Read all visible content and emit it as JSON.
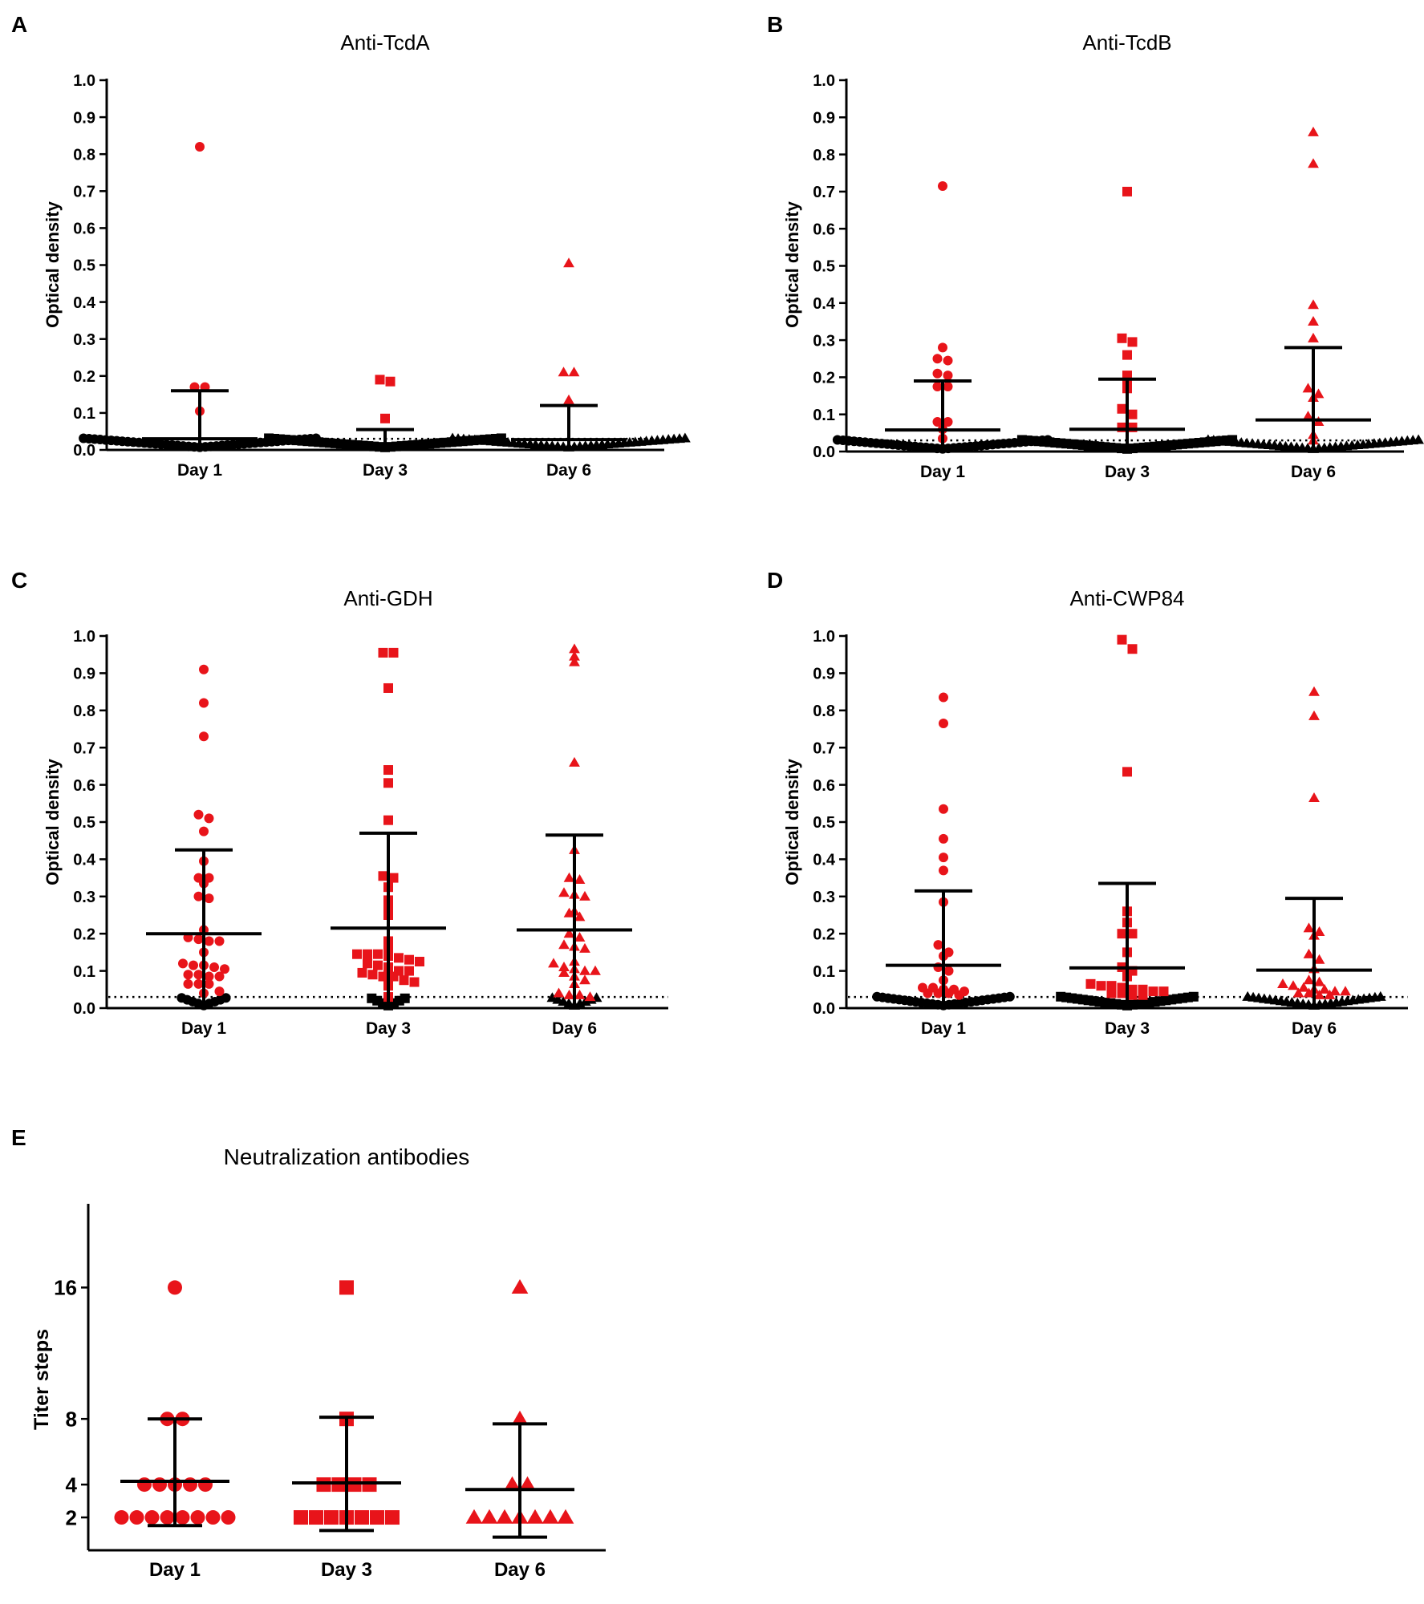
{
  "colors": {
    "positive": "#e8141a",
    "negative": "#000000",
    "axis": "#000000"
  },
  "chart_data": [
    {
      "panel": "A",
      "type": "scatter",
      "title": "Anti-TcdA",
      "ylabel": "Optical density",
      "xlabel": "",
      "ylim": [
        0,
        1.0
      ],
      "yticks": [
        "0.0",
        "0.1",
        "0.2",
        "0.3",
        "0.4",
        "0.5",
        "0.6",
        "0.7",
        "0.8",
        "0.9",
        "1.0"
      ],
      "ytick_values": [
        0,
        0.1,
        0.2,
        0.3,
        0.4,
        0.5,
        0.6,
        0.7,
        0.8,
        0.9,
        1.0
      ],
      "categories": [
        "Day 1",
        "Day 3",
        "Day 6"
      ],
      "cutoff": 0.03,
      "series": [
        {
          "name": "Day 1",
          "marker": "circle",
          "mean": 0.03,
          "sd_upper": 0.16,
          "positive": [
            0.82,
            0.17,
            0.17,
            0.105
          ],
          "negative_count": 44
        },
        {
          "name": "Day 3",
          "marker": "square",
          "mean": 0.015,
          "sd_upper": 0.055,
          "positive": [
            0.19,
            0.185,
            0.085
          ],
          "negative_count": 44
        },
        {
          "name": "Day 6",
          "marker": "triangle",
          "mean": 0.028,
          "sd_upper": 0.12,
          "positive": [
            0.505,
            0.21,
            0.21,
            0.135
          ],
          "negative_count": 44
        }
      ]
    },
    {
      "panel": "B",
      "type": "scatter",
      "title": "Anti-TcdB",
      "ylabel": "Optical density",
      "xlabel": "",
      "ylim": [
        0,
        1.0
      ],
      "yticks": [
        "0.0",
        "0.1",
        "0.2",
        "0.3",
        "0.4",
        "0.5",
        "0.6",
        "0.7",
        "0.8",
        "0.9",
        "1.0"
      ],
      "ytick_values": [
        0,
        0.1,
        0.2,
        0.3,
        0.4,
        0.5,
        0.6,
        0.7,
        0.8,
        0.9,
        1.0
      ],
      "categories": [
        "Day 1",
        "Day 3",
        "Day 6"
      ],
      "cutoff": 0.03,
      "series": [
        {
          "name": "Day 1",
          "marker": "circle",
          "mean": 0.058,
          "sd_upper": 0.19,
          "positive": [
            0.715,
            0.28,
            0.25,
            0.245,
            0.21,
            0.205,
            0.175,
            0.175,
            0.08,
            0.08,
            0.06,
            0.035
          ],
          "negative_count": 40
        },
        {
          "name": "Day 3",
          "marker": "square",
          "mean": 0.06,
          "sd_upper": 0.195,
          "positive": [
            0.7,
            0.305,
            0.295,
            0.26,
            0.205,
            0.195,
            0.17,
            0.115,
            0.1,
            0.065,
            0.065
          ],
          "negative_count": 40
        },
        {
          "name": "Day 6",
          "marker": "triangle",
          "mean": 0.085,
          "sd_upper": 0.28,
          "positive": [
            0.86,
            0.775,
            0.395,
            0.35,
            0.305,
            0.17,
            0.155,
            0.145,
            0.095,
            0.08,
            0.045,
            0.03
          ],
          "negative_count": 40
        }
      ]
    },
    {
      "panel": "C",
      "type": "scatter",
      "title": "Anti-GDH",
      "ylabel": "Optical density",
      "xlabel": "",
      "ylim": [
        0,
        1.0
      ],
      "yticks": [
        "0.0",
        "0.1",
        "0.2",
        "0.3",
        "0.4",
        "0.5",
        "0.6",
        "0.7",
        "0.8",
        "0.9",
        "1.0"
      ],
      "ytick_values": [
        0,
        0.1,
        0.2,
        0.3,
        0.4,
        0.5,
        0.6,
        0.7,
        0.8,
        0.9,
        1.0
      ],
      "categories": [
        "Day 1",
        "Day 3",
        "Day 6"
      ],
      "cutoff": 0.03,
      "series": [
        {
          "name": "Day 1",
          "marker": "circle",
          "mean": 0.2,
          "sd_upper": 0.425,
          "positive": [
            0.91,
            0.82,
            0.73,
            0.52,
            0.51,
            0.475,
            0.395,
            0.35,
            0.35,
            0.335,
            0.3,
            0.295,
            0.21,
            0.19,
            0.185,
            0.18,
            0.18,
            0.15,
            0.12,
            0.115,
            0.115,
            0.11,
            0.105,
            0.09,
            0.09,
            0.085,
            0.085,
            0.065,
            0.065,
            0.065,
            0.045,
            0.04
          ],
          "negative_count": 10
        },
        {
          "name": "Day 3",
          "marker": "square",
          "mean": 0.215,
          "sd_upper": 0.47,
          "positive": [
            0.955,
            0.955,
            0.86,
            0.64,
            0.605,
            0.505,
            0.355,
            0.35,
            0.325,
            0.29,
            0.275,
            0.25,
            0.18,
            0.165,
            0.145,
            0.145,
            0.145,
            0.14,
            0.135,
            0.13,
            0.125,
            0.12,
            0.115,
            0.11,
            0.1,
            0.1,
            0.095,
            0.09,
            0.085,
            0.085,
            0.075,
            0.07,
            0.06,
            0.03
          ],
          "negative_count": 8
        },
        {
          "name": "Day 6",
          "marker": "triangle",
          "mean": 0.21,
          "sd_upper": 0.465,
          "positive": [
            0.965,
            0.945,
            0.93,
            0.66,
            0.425,
            0.35,
            0.345,
            0.31,
            0.305,
            0.3,
            0.26,
            0.255,
            0.245,
            0.2,
            0.19,
            0.17,
            0.165,
            0.16,
            0.125,
            0.12,
            0.11,
            0.105,
            0.1,
            0.1,
            0.095,
            0.085,
            0.075,
            0.065,
            0.04,
            0.035,
            0.035,
            0.03
          ],
          "negative_count": 10
        }
      ]
    },
    {
      "panel": "D",
      "type": "scatter",
      "title": "Anti-CWP84",
      "ylabel": "Optical density",
      "xlabel": "",
      "ylim": [
        0,
        1.0
      ],
      "yticks": [
        "0.0",
        "0.1",
        "0.2",
        "0.3",
        "0.4",
        "0.5",
        "0.6",
        "0.7",
        "0.8",
        "0.9",
        "1.0"
      ],
      "ytick_values": [
        0,
        0.1,
        0.2,
        0.3,
        0.4,
        0.5,
        0.6,
        0.7,
        0.8,
        0.9,
        1.0
      ],
      "categories": [
        "Day 1",
        "Day 3",
        "Day 6"
      ],
      "cutoff": 0.03,
      "series": [
        {
          "name": "Day 1",
          "marker": "circle",
          "mean": 0.115,
          "sd_upper": 0.315,
          "positive": [
            0.835,
            0.765,
            0.535,
            0.455,
            0.405,
            0.37,
            0.285,
            0.17,
            0.15,
            0.14,
            0.11,
            0.1,
            0.075,
            0.055,
            0.055,
            0.05,
            0.05,
            0.045,
            0.04,
            0.04,
            0.04,
            0.035
          ],
          "negative_count": 26
        },
        {
          "name": "Day 3",
          "marker": "square",
          "mean": 0.108,
          "sd_upper": 0.335,
          "positive": [
            0.99,
            0.965,
            0.635,
            0.26,
            0.23,
            0.2,
            0.2,
            0.15,
            0.11,
            0.1,
            0.085,
            0.065,
            0.06,
            0.06,
            0.055,
            0.05,
            0.05,
            0.045,
            0.045,
            0.04,
            0.04,
            0.035,
            0.035
          ],
          "negative_count": 26
        },
        {
          "name": "Day 6",
          "marker": "triangle",
          "mean": 0.102,
          "sd_upper": 0.295,
          "positive": [
            0.85,
            0.785,
            0.565,
            0.215,
            0.205,
            0.195,
            0.145,
            0.13,
            0.105,
            0.075,
            0.07,
            0.065,
            0.06,
            0.055,
            0.05,
            0.05,
            0.045,
            0.045,
            0.04,
            0.04,
            0.035,
            0.035
          ],
          "negative_count": 26
        }
      ]
    },
    {
      "panel": "E",
      "type": "scatter",
      "title": "Neutralization antibodies",
      "ylabel": "Titer steps",
      "xlabel": "",
      "ylim": [
        0,
        21
      ],
      "yticks": [
        "2",
        "4",
        "8",
        "16"
      ],
      "ytick_values": [
        2,
        4,
        8,
        16
      ],
      "categories": [
        "Day 1",
        "Day 3",
        "Day 6"
      ],
      "cutoff": null,
      "series": [
        {
          "name": "Day 1",
          "marker": "circle",
          "mean": 4.2,
          "sd_upper": 8.0,
          "sd_lower": 1.5,
          "positive": [
            16,
            8,
            8,
            4,
            4,
            4,
            4,
            4,
            2,
            2,
            2,
            2,
            2,
            2,
            2,
            2
          ],
          "negative_count": 0
        },
        {
          "name": "Day 3",
          "marker": "square",
          "mean": 4.1,
          "sd_upper": 8.1,
          "sd_lower": 1.2,
          "positive": [
            16,
            8,
            4,
            4,
            4,
            4,
            2,
            2,
            2,
            2,
            2,
            2,
            2
          ],
          "negative_count": 0
        },
        {
          "name": "Day 6",
          "marker": "triangle",
          "mean": 3.7,
          "sd_upper": 7.7,
          "sd_lower": 0.8,
          "positive": [
            16,
            8,
            4,
            4,
            2,
            2,
            2,
            2,
            2,
            2,
            2
          ],
          "negative_count": 0
        }
      ]
    }
  ]
}
